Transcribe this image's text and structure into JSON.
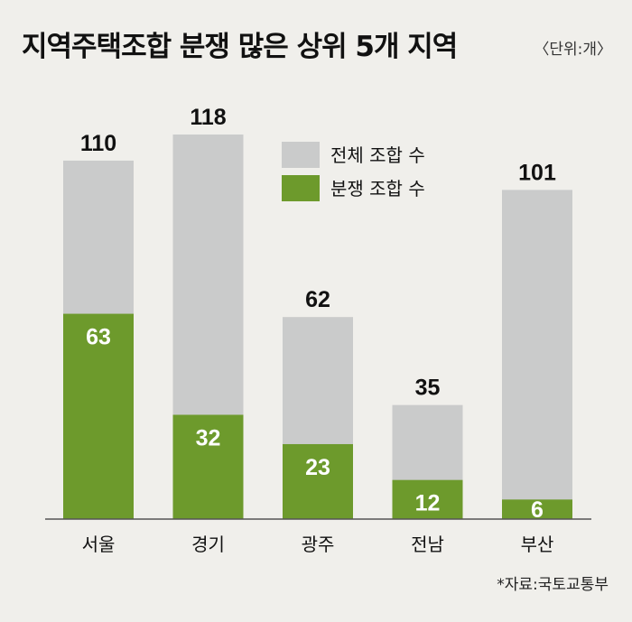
{
  "header": {
    "title": "지역주택조합 분쟁 많은 상위 5개 지역",
    "unit": "〈단위:개〉",
    "source": "*자료:국토교통부"
  },
  "colors": {
    "total": "#cacbcb",
    "dispute": "#6d9a2c",
    "baseline": "#555555"
  },
  "chart_data": {
    "type": "bar",
    "stacked": "overlay",
    "categories": [
      "서울",
      "경기",
      "광주",
      "전남",
      "부산"
    ],
    "series": [
      {
        "name": "전체 조합 수",
        "values": [
          110,
          118,
          62,
          35,
          101
        ]
      },
      {
        "name": "분쟁 조합 수",
        "values": [
          63,
          32,
          23,
          12,
          6
        ]
      }
    ],
    "ylim": [
      0,
      118
    ],
    "legend_position": "top-center",
    "grid": false
  }
}
